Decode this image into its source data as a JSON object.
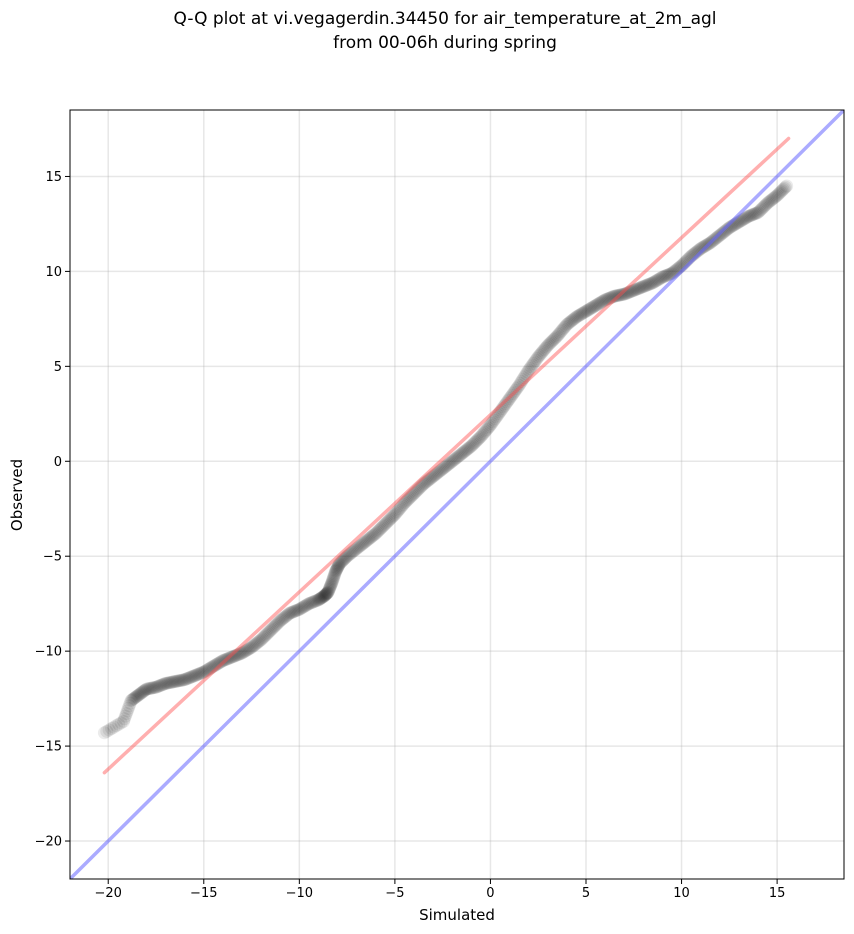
{
  "chart_data": {
    "type": "scatter",
    "title_lines": [
      "Q-Q plot at vi.vegagerdin.34450 for air_temperature_at_2m_agl",
      "from 00-06h during spring"
    ],
    "xlabel": "Simulated",
    "ylabel": "Observed",
    "xlim": [
      -22,
      18.5
    ],
    "ylim": [
      -22,
      18.5
    ],
    "xticks": [
      -20,
      -15,
      -10,
      -5,
      0,
      5,
      10,
      15
    ],
    "yticks": [
      -20,
      -15,
      -10,
      -5,
      0,
      5,
      10,
      15
    ],
    "xtick_labels": [
      "−20",
      "−15",
      "−10",
      "−5",
      "0",
      "5",
      "10",
      "15"
    ],
    "ytick_labels": [
      "−20",
      "−15",
      "−10",
      "−5",
      "0",
      "5",
      "10",
      "15"
    ],
    "grid": true,
    "series": [
      {
        "kind": "quantiles",
        "color": "#000000",
        "points": [
          [
            -20.2,
            -14.3
          ],
          [
            -19.2,
            -13.7
          ],
          [
            -18.8,
            -12.6
          ],
          [
            -18.4,
            -12.3
          ],
          [
            -18.0,
            -12.0
          ],
          [
            -17.5,
            -11.9
          ],
          [
            -17.0,
            -11.7
          ],
          [
            -16.5,
            -11.6
          ],
          [
            -16.0,
            -11.5
          ],
          [
            -15.5,
            -11.3
          ],
          [
            -15.0,
            -11.1
          ],
          [
            -14.5,
            -10.8
          ],
          [
            -14.0,
            -10.5
          ],
          [
            -13.5,
            -10.3
          ],
          [
            -13.0,
            -10.1
          ],
          [
            -12.5,
            -9.8
          ],
          [
            -12.0,
            -9.4
          ],
          [
            -11.5,
            -8.9
          ],
          [
            -11.0,
            -8.4
          ],
          [
            -10.5,
            -8.0
          ],
          [
            -10.0,
            -7.8
          ],
          [
            -9.5,
            -7.5
          ],
          [
            -9.0,
            -7.3
          ],
          [
            -8.7,
            -7.1
          ],
          [
            -8.5,
            -6.9
          ],
          [
            -8.3,
            -6.4
          ],
          [
            -8.1,
            -5.8
          ],
          [
            -7.9,
            -5.4
          ],
          [
            -7.5,
            -5.0
          ],
          [
            -7.0,
            -4.6
          ],
          [
            -6.5,
            -4.2
          ],
          [
            -6.0,
            -3.8
          ],
          [
            -5.5,
            -3.3
          ],
          [
            -5.0,
            -2.8
          ],
          [
            -4.5,
            -2.2
          ],
          [
            -4.0,
            -1.7
          ],
          [
            -3.5,
            -1.2
          ],
          [
            -3.0,
            -0.8
          ],
          [
            -2.5,
            -0.4
          ],
          [
            -2.0,
            0.0
          ],
          [
            -1.5,
            0.4
          ],
          [
            -1.0,
            0.8
          ],
          [
            -0.5,
            1.3
          ],
          [
            0.0,
            1.9
          ],
          [
            0.5,
            2.6
          ],
          [
            1.0,
            3.3
          ],
          [
            1.5,
            4.0
          ],
          [
            2.0,
            4.8
          ],
          [
            2.5,
            5.5
          ],
          [
            3.0,
            6.1
          ],
          [
            3.5,
            6.6
          ],
          [
            4.0,
            7.2
          ],
          [
            4.5,
            7.6
          ],
          [
            5.0,
            7.9
          ],
          [
            5.5,
            8.2
          ],
          [
            6.0,
            8.5
          ],
          [
            6.5,
            8.7
          ],
          [
            7.0,
            8.8
          ],
          [
            7.5,
            9.0
          ],
          [
            8.0,
            9.2
          ],
          [
            8.5,
            9.4
          ],
          [
            9.0,
            9.7
          ],
          [
            9.5,
            9.9
          ],
          [
            10.0,
            10.3
          ],
          [
            10.5,
            10.8
          ],
          [
            11.0,
            11.2
          ],
          [
            11.5,
            11.5
          ],
          [
            12.0,
            11.9
          ],
          [
            12.5,
            12.3
          ],
          [
            13.0,
            12.6
          ],
          [
            13.5,
            12.9
          ],
          [
            14.0,
            13.1
          ],
          [
            14.5,
            13.6
          ],
          [
            15.0,
            14.0
          ],
          [
            15.5,
            14.5
          ]
        ]
      },
      {
        "kind": "fit-line",
        "color": "#ff4d4d",
        "points": [
          [
            -20.2,
            -16.4
          ],
          [
            15.6,
            17.0
          ]
        ]
      },
      {
        "kind": "identity-line",
        "color": "#6666ff",
        "points": [
          [
            -22,
            -22
          ],
          [
            18.5,
            18.5
          ]
        ]
      }
    ]
  }
}
